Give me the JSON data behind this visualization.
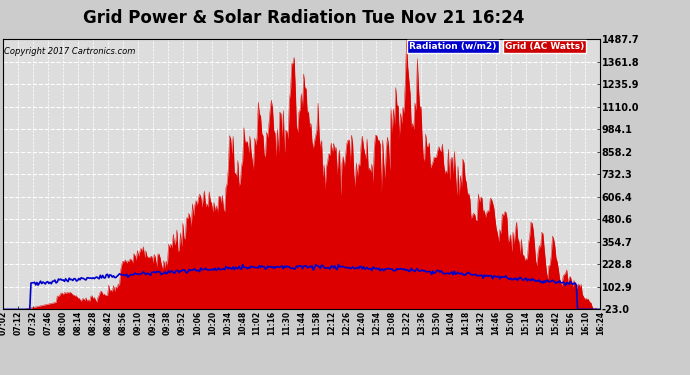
{
  "title": "Grid Power & Solar Radiation Tue Nov 21 16:24",
  "copyright": "Copyright 2017 Cartronics.com",
  "background_color": "#cccccc",
  "plot_bg_color": "#dddddd",
  "grid_color": "#ffffff",
  "yticks": [
    -23.0,
    102.9,
    228.8,
    354.7,
    480.6,
    606.4,
    732.3,
    858.2,
    984.1,
    1110.0,
    1235.9,
    1361.8,
    1487.7
  ],
  "ymin": -23.0,
  "ymax": 1487.7,
  "legend_radiation_label": "Radiation (w/m2)",
  "legend_grid_label": "Grid (AC Watts)",
  "legend_radiation_color": "#0000cc",
  "legend_grid_color": "#cc0000",
  "radiation_line_color": "#0000cc",
  "grid_fill_color": "#dd0000",
  "title_fontsize": 12,
  "label_fontsize": 7,
  "xtick_labels": [
    "07:02",
    "07:12",
    "07:32",
    "07:46",
    "08:00",
    "08:14",
    "08:28",
    "08:42",
    "08:56",
    "09:10",
    "09:24",
    "09:38",
    "09:52",
    "10:06",
    "10:20",
    "10:34",
    "10:48",
    "11:02",
    "11:16",
    "11:30",
    "11:44",
    "11:58",
    "12:12",
    "12:26",
    "12:40",
    "12:54",
    "13:08",
    "13:22",
    "13:36",
    "13:50",
    "14:04",
    "14:18",
    "14:32",
    "14:46",
    "15:00",
    "15:14",
    "15:28",
    "15:42",
    "15:56",
    "16:10",
    "16:24"
  ]
}
